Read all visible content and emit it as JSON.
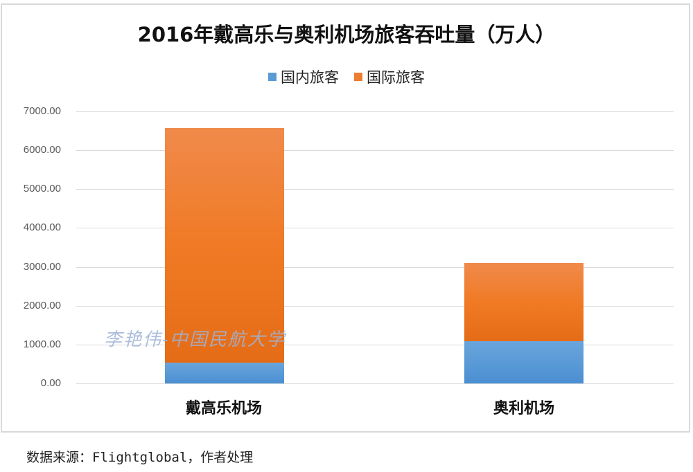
{
  "chart_data": {
    "type": "bar",
    "stacked": true,
    "title": "2016年戴高乐与奥利机场旅客吞吐量（万人）",
    "categories": [
      "戴高乐机场",
      "奥利机场"
    ],
    "series": [
      {
        "name": "国内旅客",
        "color": "#5b9bd5",
        "values": [
          530,
          1085
        ]
      },
      {
        "name": "国际旅客",
        "color": "#ed7d31",
        "values": [
          6050,
          2015
        ]
      }
    ],
    "totals": [
      6580,
      3100
    ],
    "xlabel": "",
    "ylabel": "",
    "ylim": [
      0,
      7000
    ],
    "yticks": [
      "0.00",
      "1000.00",
      "2000.00",
      "3000.00",
      "4000.00",
      "5000.00",
      "6000.00",
      "7000.00"
    ],
    "grid": true,
    "legend_position": "top"
  },
  "legend": {
    "domestic": "国内旅客",
    "international": "国际旅客"
  },
  "watermark": "李艳伟-中国民航大学",
  "source_note": "数据来源：Flightglobal，作者处理"
}
